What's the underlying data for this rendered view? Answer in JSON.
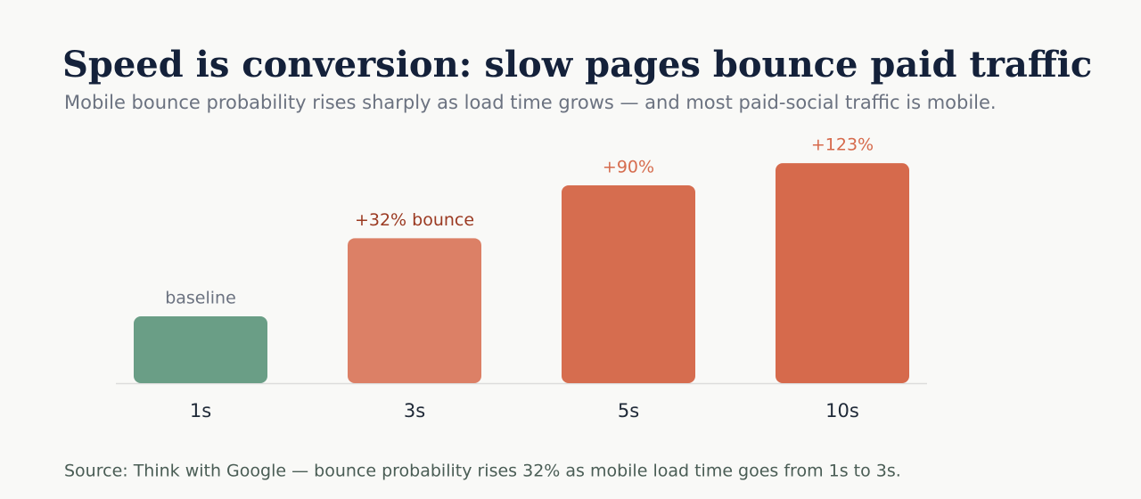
{
  "chart_data": {
    "type": "bar",
    "title": "Speed is conversion: slow pages bounce paid traffic",
    "subtitle": "Mobile bounce probability rises sharply as load time grows — and most paid-social traffic is mobile.",
    "categories": [
      "1s",
      "3s",
      "5s",
      "10s"
    ],
    "values": [
      0,
      32,
      90,
      123
    ],
    "value_labels": [
      "baseline",
      "+32% bounce",
      "+90%",
      "+123%"
    ],
    "colors": [
      "#6a9e86",
      "#dc8066",
      "#d66d4f",
      "#d66a4c"
    ],
    "label_colors": [
      "#6b7280",
      "#9b3a22",
      "#d66d4f",
      "#d66a4c"
    ],
    "source": "Source: Think with Google — bounce probability rises 32% as mobile load time goes from 1s to 3s."
  }
}
